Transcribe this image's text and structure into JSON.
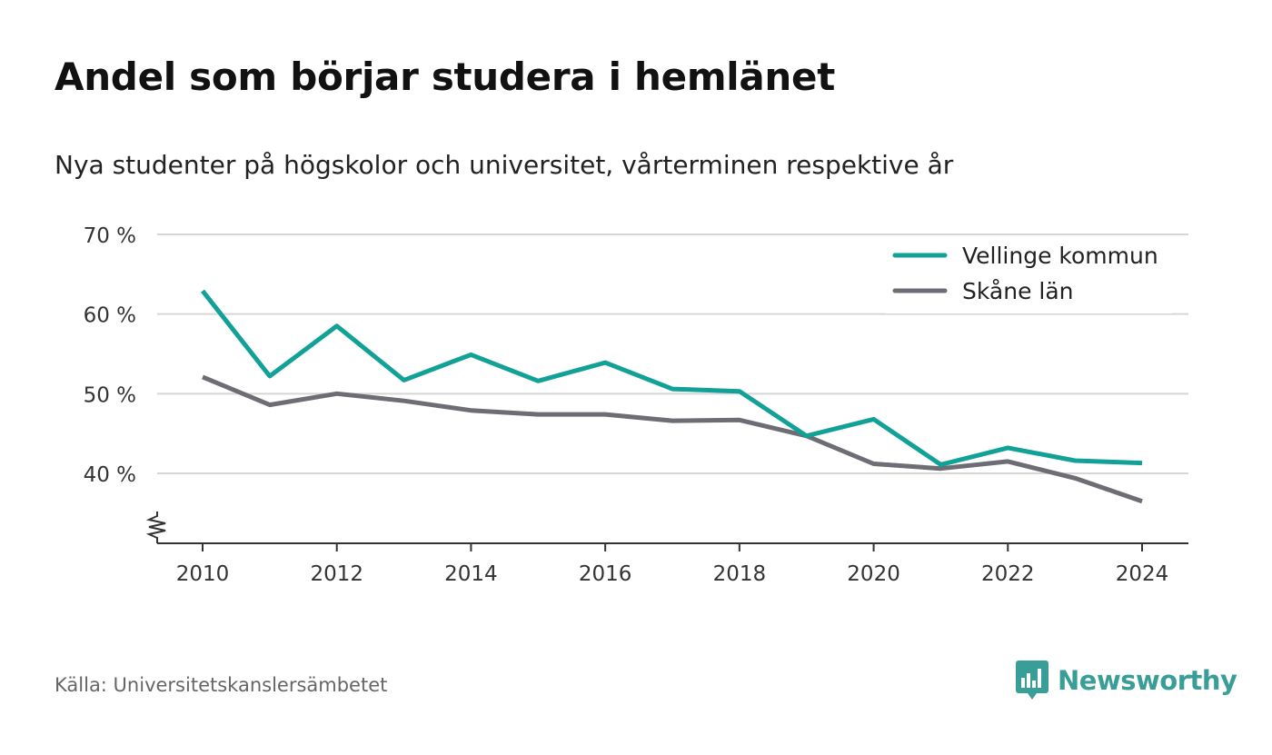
{
  "header": {
    "title": "Andel som börjar studera i hemlänet",
    "subtitle": "Nya studenter på högskolor och universitet, vårterminen respektive år"
  },
  "footer": {
    "source": "Källa: Universitetskanslersämbetet",
    "brand": "Newsworthy",
    "brand_icon": "bar-chart-speech-bubble-icon"
  },
  "colors": {
    "vellinge": "#12a196",
    "skane": "#6e6c74",
    "grid": "#d6d6d6",
    "axis": "#333333",
    "brand": "#3a9e98"
  },
  "chart_data": {
    "type": "line",
    "x": [
      2010,
      2011,
      2012,
      2013,
      2014,
      2015,
      2016,
      2017,
      2018,
      2019,
      2020,
      2021,
      2022,
      2023,
      2024
    ],
    "x_ticks": [
      "2010",
      "2012",
      "2014",
      "2016",
      "2018",
      "2020",
      "2022",
      "2024"
    ],
    "y_ticks": [
      "40 %",
      "50 %",
      "60 %",
      "70 %"
    ],
    "ylim": [
      31,
      70
    ],
    "y_axis_break": true,
    "grid": "horizontal",
    "legend_position": "top-right",
    "series": [
      {
        "name": "Vellinge kommun",
        "color": "#12a196",
        "values": [
          62.9,
          52.2,
          58.5,
          51.7,
          54.9,
          51.6,
          53.9,
          50.6,
          50.3,
          44.7,
          46.8,
          41.1,
          43.2,
          41.6,
          41.3
        ]
      },
      {
        "name": "Skåne län",
        "color": "#6e6c74",
        "values": [
          52.1,
          48.6,
          50.0,
          49.1,
          47.9,
          47.4,
          47.4,
          46.6,
          46.7,
          44.7,
          41.2,
          40.6,
          41.5,
          39.4,
          36.5
        ]
      }
    ]
  }
}
